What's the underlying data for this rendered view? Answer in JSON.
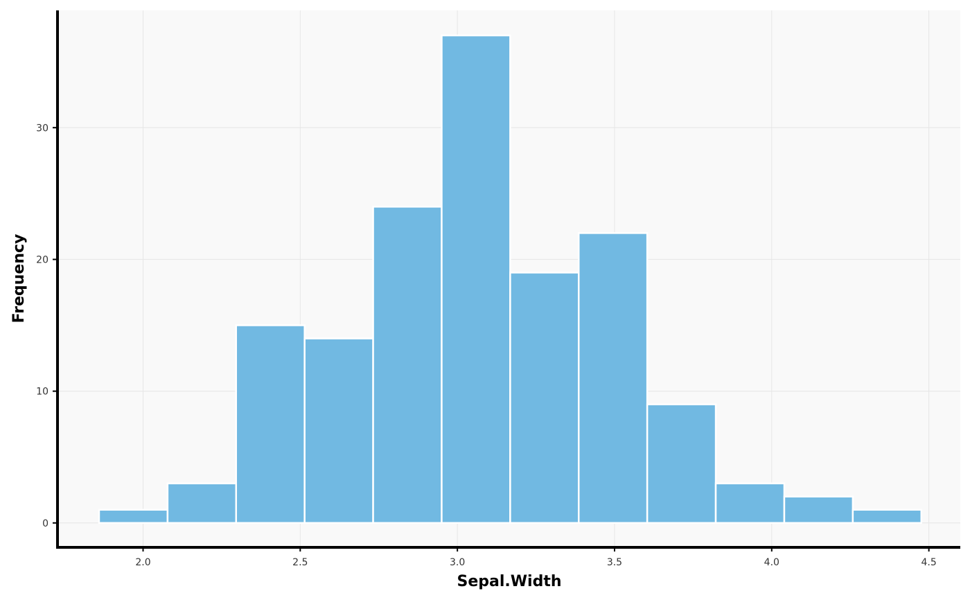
{
  "chart_data": {
    "type": "bar",
    "subtype": "histogram",
    "xlabel": "Sepal.Width",
    "ylabel": "Frequency",
    "bins": [
      {
        "x0": 1.86,
        "x1": 2.078,
        "count": 1
      },
      {
        "x0": 2.078,
        "x1": 2.296,
        "count": 3
      },
      {
        "x0": 2.296,
        "x1": 2.514,
        "count": 15
      },
      {
        "x0": 2.514,
        "x1": 2.732,
        "count": 14
      },
      {
        "x0": 2.732,
        "x1": 2.95,
        "count": 24
      },
      {
        "x0": 2.95,
        "x1": 3.168,
        "count": 37
      },
      {
        "x0": 3.168,
        "x1": 3.386,
        "count": 19
      },
      {
        "x0": 3.386,
        "x1": 3.604,
        "count": 22
      },
      {
        "x0": 3.604,
        "x1": 3.822,
        "count": 9
      },
      {
        "x0": 3.822,
        "x1": 4.04,
        "count": 3
      },
      {
        "x0": 4.04,
        "x1": 4.258,
        "count": 2
      },
      {
        "x0": 4.258,
        "x1": 4.476,
        "count": 1
      }
    ],
    "xlim": [
      1.73,
      4.6
    ],
    "ylim": [
      -1.8,
      38.9
    ],
    "xticks": [
      "2.0",
      "2.5",
      "3.0",
      "3.5",
      "4.0",
      "4.5"
    ],
    "yticks": [
      "0",
      "10",
      "20",
      "30"
    ],
    "grid": true,
    "colors": {
      "bar_fill": "#71b9e2",
      "bar_stroke": "#ffffff",
      "panel_bg": "#f9f9f9",
      "grid": "#e6e6e6",
      "axis": "#000000"
    }
  }
}
